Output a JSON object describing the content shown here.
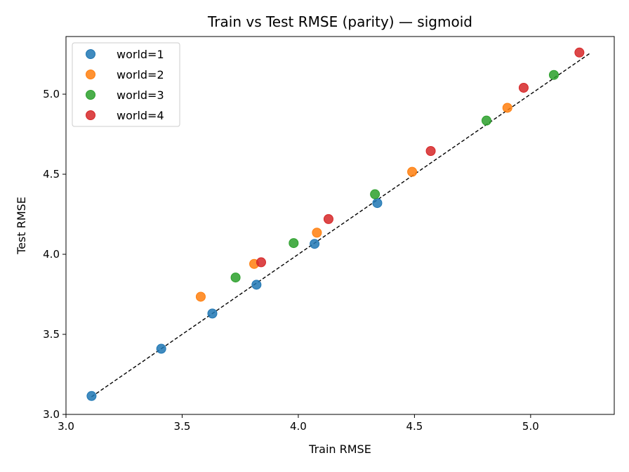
{
  "chart_data": {
    "type": "scatter",
    "title": "Train vs Test RMSE (parity) — sigmoid",
    "xlabel": "Train RMSE",
    "ylabel": "Test RMSE",
    "xlim": [
      3.0,
      5.36
    ],
    "ylim": [
      3.0,
      5.36
    ],
    "xticks": [
      "3.0",
      "3.5",
      "4.0",
      "4.5",
      "5.0"
    ],
    "yticks": [
      "3.0",
      "3.5",
      "4.0",
      "4.5",
      "5.0"
    ],
    "grid": false,
    "legend_position": "upper-left",
    "parity_line": {
      "from": 3.11,
      "to": 5.26,
      "style": "dashed",
      "color": "#000000"
    },
    "series": [
      {
        "name": "world=1",
        "color": "#1f77b4",
        "points": [
          [
            3.11,
            3.115
          ],
          [
            3.41,
            3.41
          ],
          [
            3.63,
            3.63
          ],
          [
            3.82,
            3.81
          ],
          [
            4.07,
            4.065
          ],
          [
            4.34,
            4.32
          ]
        ]
      },
      {
        "name": "world=2",
        "color": "#ff7f0e",
        "points": [
          [
            3.58,
            3.735
          ],
          [
            3.81,
            3.94
          ],
          [
            4.08,
            4.135
          ],
          [
            4.49,
            4.515
          ],
          [
            4.9,
            4.915
          ]
        ]
      },
      {
        "name": "world=3",
        "color": "#2ca02c",
        "points": [
          [
            3.73,
            3.855
          ],
          [
            3.98,
            4.07
          ],
          [
            4.33,
            4.375
          ],
          [
            4.81,
            4.835
          ],
          [
            5.1,
            5.12
          ]
        ]
      },
      {
        "name": "world=4",
        "color": "#d62728",
        "points": [
          [
            3.84,
            3.95
          ],
          [
            4.13,
            4.22
          ],
          [
            4.57,
            4.645
          ],
          [
            4.97,
            5.04
          ],
          [
            5.21,
            5.26
          ]
        ]
      }
    ]
  }
}
